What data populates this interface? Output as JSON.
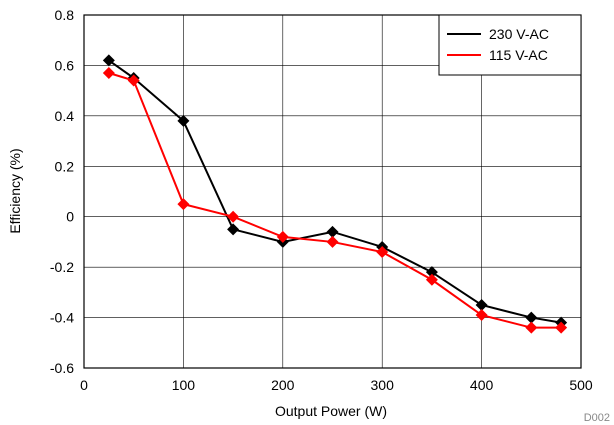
{
  "chart_data": {
    "type": "line",
    "title": "",
    "xlabel": "Output Power (W)",
    "ylabel": "Efficiency (%)",
    "xlim": [
      0,
      500
    ],
    "ylim": [
      -0.6,
      0.8
    ],
    "x_ticks": [
      0,
      100,
      200,
      300,
      400,
      500
    ],
    "y_ticks": [
      -0.6,
      -0.4,
      -0.2,
      0,
      0.2,
      0.4,
      0.6,
      0.8
    ],
    "x_tick_labels": [
      "0",
      "100",
      "200",
      "300",
      "400",
      "500"
    ],
    "y_tick_labels": [
      "-0.6",
      "-0.4",
      "-0.2",
      "0",
      "0.2",
      "0.4",
      "0.6",
      "0.8"
    ],
    "grid": true,
    "legend_position": "top-right",
    "series": [
      {
        "name": "230 V-AC",
        "color": "#000000",
        "x": [
          25,
          50,
          100,
          150,
          200,
          250,
          300,
          350,
          400,
          450,
          480
        ],
        "values": [
          0.62,
          0.55,
          0.38,
          -0.05,
          -0.1,
          -0.06,
          -0.12,
          -0.22,
          -0.35,
          -0.4,
          -0.42
        ]
      },
      {
        "name": "115 V-AC",
        "color": "#ff0000",
        "x": [
          25,
          50,
          100,
          150,
          200,
          250,
          300,
          350,
          400,
          450,
          480
        ],
        "values": [
          0.57,
          0.54,
          0.05,
          0.0,
          -0.08,
          -0.1,
          -0.14,
          -0.25,
          -0.39,
          -0.44,
          -0.44
        ]
      }
    ],
    "marker": "diamond",
    "corner_label": "D002"
  }
}
